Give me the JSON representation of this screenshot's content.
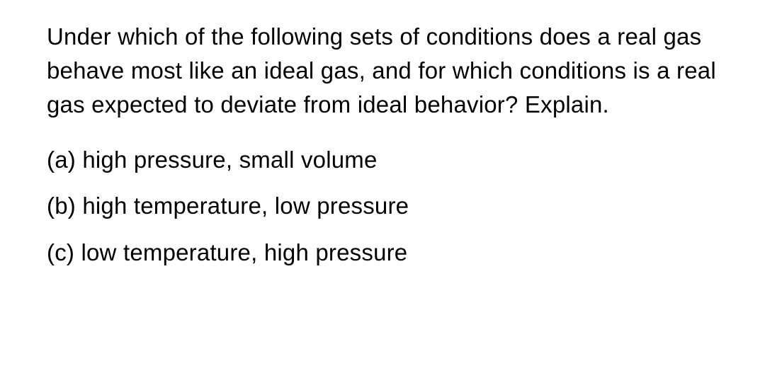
{
  "question": {
    "text": "Under which of the following sets of conditions does a real gas behave most like an ideal gas, and for which conditions is a real gas expected to deviate from ideal behavior? Explain.",
    "fontsize": 33,
    "color": "#000000",
    "line_height": 1.45
  },
  "options": [
    {
      "label": "(a)",
      "text": "high pressure, small volume"
    },
    {
      "label": "(b)",
      "text": "high temperature, low pressure"
    },
    {
      "label": "(c)",
      "text": "low temperature, high pressure"
    }
  ],
  "styling": {
    "background_color": "#ffffff",
    "text_color": "#000000",
    "option_fontsize": 33,
    "option_spacing": 18,
    "question_margin_bottom": 30
  }
}
